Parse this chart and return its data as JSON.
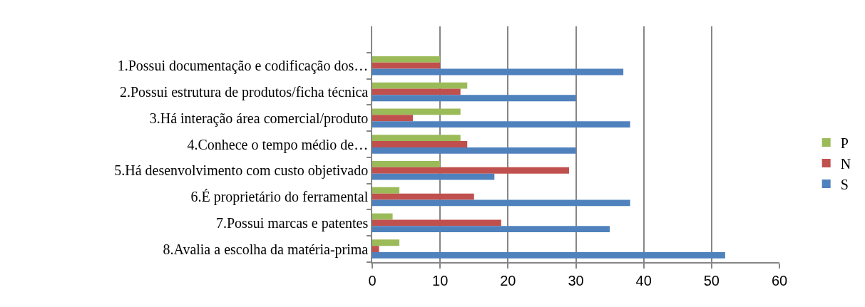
{
  "chart_data": {
    "type": "bar",
    "orientation": "horizontal",
    "categories": [
      null,
      "1.Possui documentação e codificação dos…",
      "2.Possui estrutura de produtos/ficha técnica",
      "3.Há interação área comercial/produto",
      "4.Conhece o tempo médio de…",
      "5.Há desenvolvimento com custo objetivado",
      "6.É proprietário do ferramental",
      "7.Possui marcas e patentes",
      "8.Avalia a escolha da matéria-prima"
    ],
    "series": [
      {
        "name": "P",
        "color": "#9bbb59",
        "values": [
          null,
          10,
          14,
          13,
          13,
          10,
          4,
          3,
          4
        ]
      },
      {
        "name": "N",
        "color": "#c0504d",
        "values": [
          null,
          10,
          13,
          6,
          14,
          29,
          15,
          19,
          1
        ]
      },
      {
        "name": "S",
        "color": "#4f81bd",
        "values": [
          null,
          37,
          30,
          38,
          30,
          18,
          38,
          35,
          52
        ]
      }
    ],
    "xlim": [
      0,
      60
    ],
    "xticks": [
      0,
      10,
      20,
      30,
      40,
      50,
      60
    ],
    "grid": "x",
    "legend": "right"
  }
}
